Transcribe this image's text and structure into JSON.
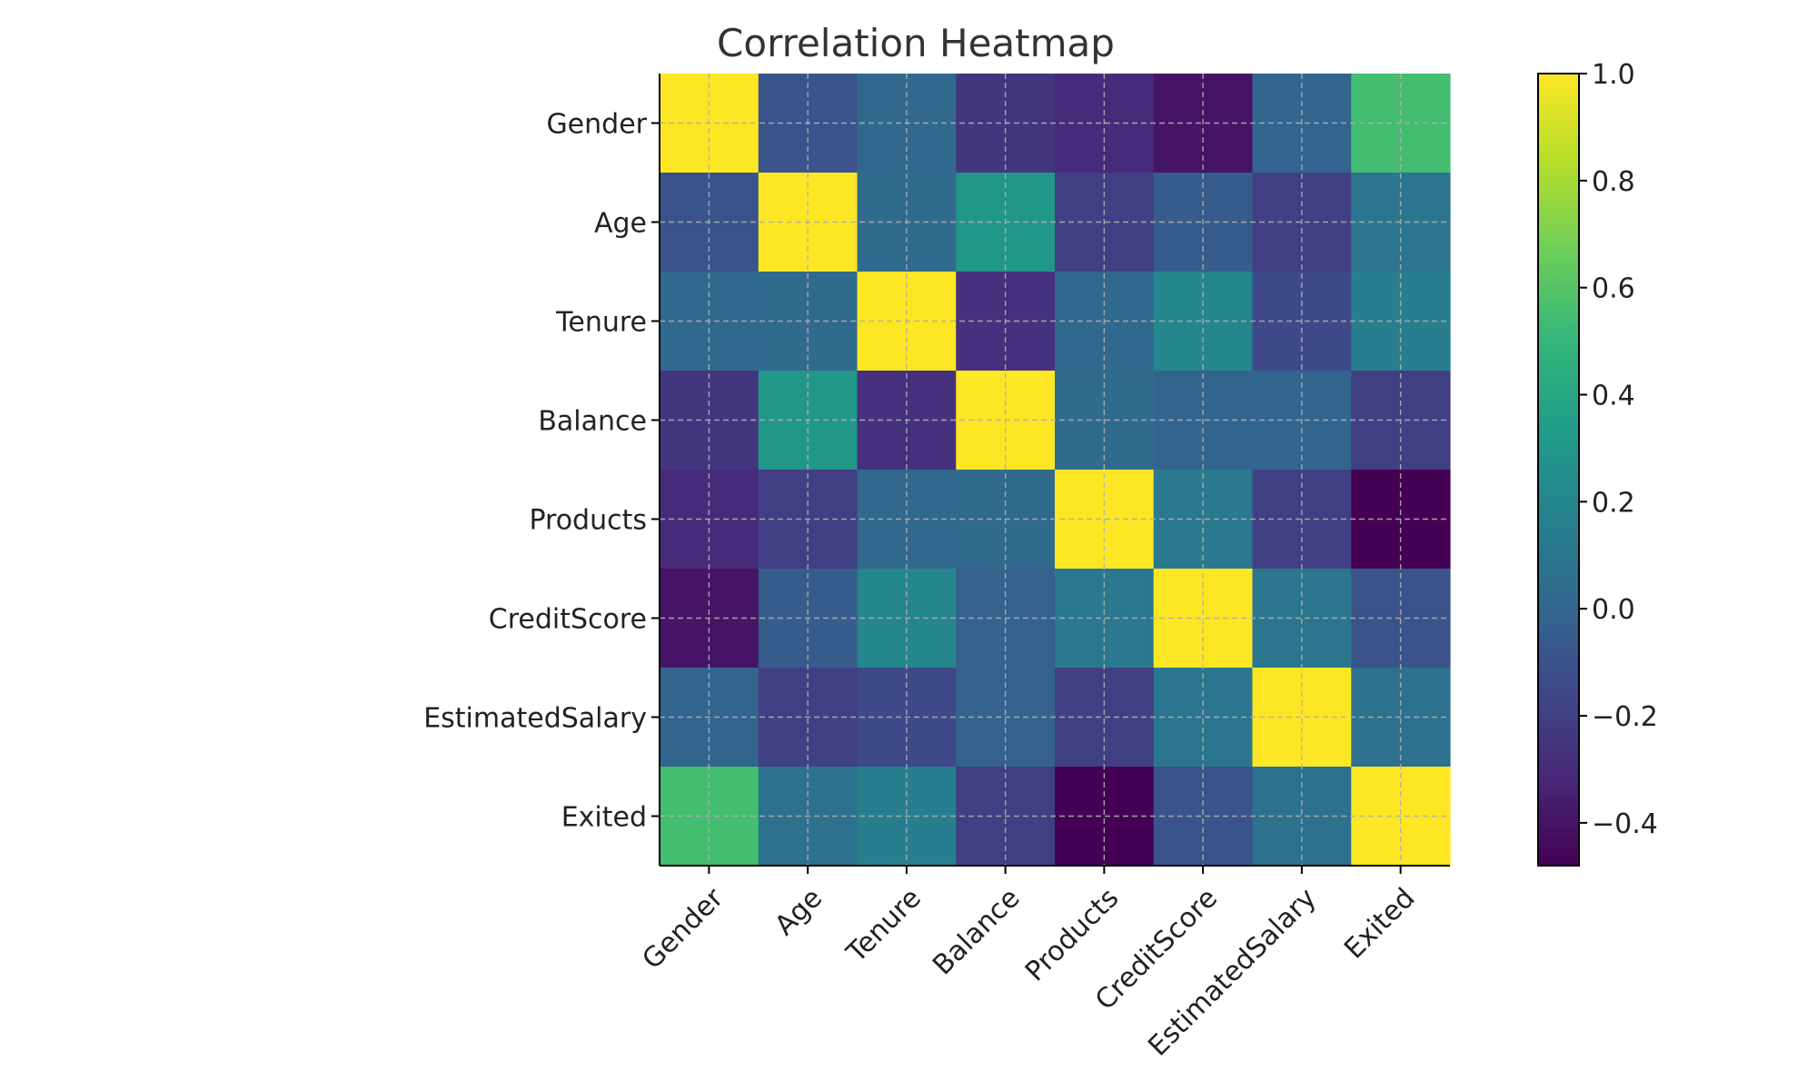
{
  "chart_data": {
    "type": "heatmap",
    "title": "Correlation Heatmap",
    "xlabel": "",
    "ylabel": "",
    "x_categories": [
      "Gender",
      "Age",
      "Tenure",
      "Balance",
      "Products",
      "CreditScore",
      "EstimatedSalary",
      "Exited"
    ],
    "y_categories": [
      "Gender",
      "Age",
      "Tenure",
      "Balance",
      "Products",
      "CreditScore",
      "EstimatedSalary",
      "Exited"
    ],
    "values": [
      [
        1.0,
        -0.1,
        0.02,
        -0.25,
        -0.3,
        -0.4,
        0.0,
        0.55
      ],
      [
        -0.1,
        1.0,
        0.03,
        0.3,
        -0.2,
        -0.05,
        -0.2,
        0.1
      ],
      [
        0.02,
        0.03,
        1.0,
        -0.27,
        0.02,
        0.2,
        -0.15,
        0.15
      ],
      [
        -0.25,
        0.3,
        -0.27,
        1.0,
        0.03,
        0.0,
        0.0,
        -0.2
      ],
      [
        -0.3,
        -0.2,
        0.02,
        0.03,
        1.0,
        0.12,
        -0.2,
        -0.48
      ],
      [
        -0.4,
        -0.05,
        0.2,
        -0.02,
        0.12,
        1.0,
        0.1,
        -0.1
      ],
      [
        0.0,
        -0.2,
        -0.15,
        -0.02,
        -0.2,
        0.1,
        1.0,
        0.07
      ],
      [
        0.55,
        0.07,
        0.15,
        -0.2,
        -0.48,
        -0.1,
        0.07,
        1.0
      ]
    ],
    "colorbar": {
      "range": [
        -0.48,
        1.0
      ],
      "ticks": [
        1.0,
        0.8,
        0.6,
        0.4,
        0.2,
        0.0,
        -0.2,
        -0.4
      ],
      "tick_labels": [
        "1.0",
        "0.8",
        "0.6",
        "0.4",
        "0.2",
        "0.0",
        "−0.2",
        "−0.4"
      ],
      "colormap": "viridis"
    },
    "grid": true,
    "colors": {
      "viridis": [
        "#440154",
        "#482878",
        "#3e4989",
        "#31688e",
        "#26828e",
        "#1f9e89",
        "#35b779",
        "#6ece58",
        "#b5de2b",
        "#fde725"
      ],
      "grid": "#b0b0b0",
      "axis": "#000000"
    }
  }
}
